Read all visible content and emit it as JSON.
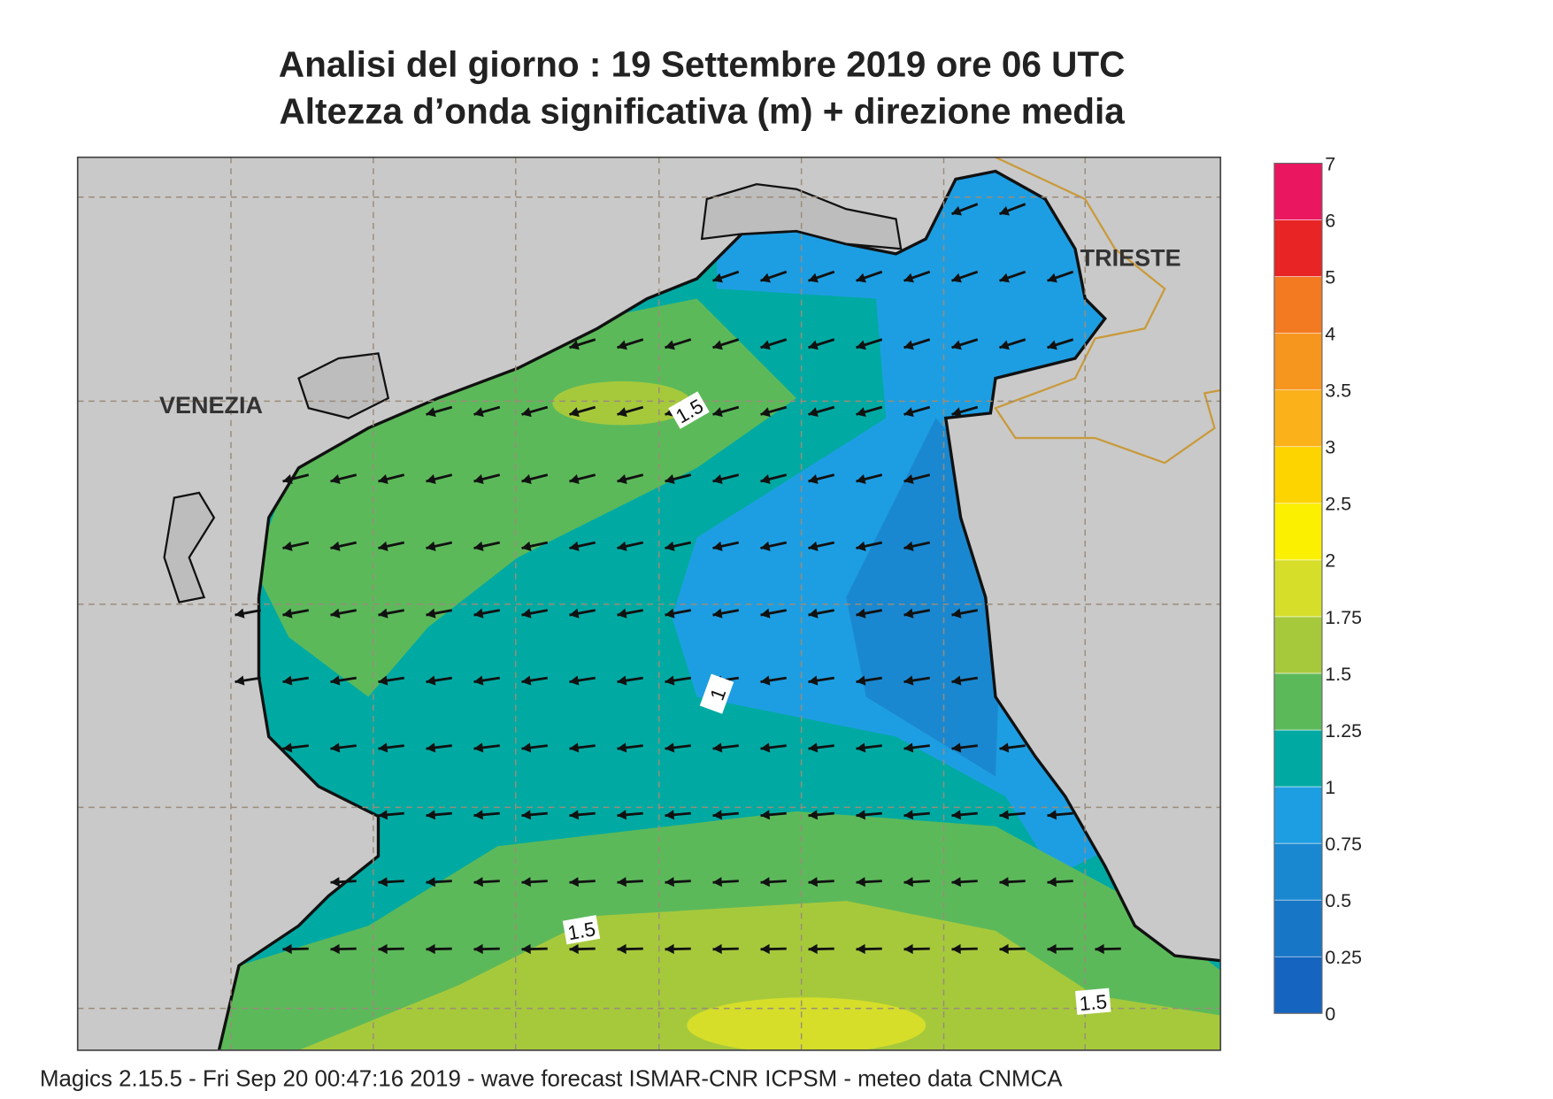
{
  "title": {
    "line1": "Analisi del giorno :  19 Settembre 2019   ore 06 UTC",
    "line2": "Altezza d’onda significativa (m) + direzione media"
  },
  "labels": [
    "VENEZIA",
    "TRIESTE"
  ],
  "contour_labels": [
    1.5,
    1,
    1.5,
    1.5
  ],
  "legend": {
    "levels": [
      0,
      0.25,
      0.5,
      0.75,
      1,
      1.25,
      1.5,
      1.75,
      2,
      2.5,
      3,
      3.5,
      4,
      5,
      6,
      7
    ],
    "colors": [
      "#1565c0",
      "#1876c6",
      "#1a88d0",
      "#1e9ee2",
      "#00aaa2",
      "#5cb95a",
      "#a6c93c",
      "#d6de2a",
      "#fbf000",
      "#fdd400",
      "#fbb21a",
      "#f7961e",
      "#f47a22",
      "#e82424",
      "#ea1660"
    ]
  },
  "footer": "Magics 2.15.5 - Fri Sep 20 00:47:16 2019 - wave forecast  ISMAR-CNR  ICPSM - meteo data    CNMCA"
}
